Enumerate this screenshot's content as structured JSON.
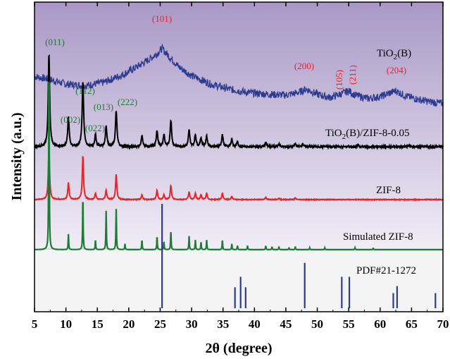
{
  "chart_data": {
    "type": "line",
    "xlabel": "2θ (degree)",
    "ylabel": "Intensity (a.u.)",
    "xlim": [
      5,
      70
    ],
    "x_ticks": [
      "5",
      "10",
      "15",
      "20",
      "25",
      "30",
      "35",
      "40",
      "45",
      "50",
      "55",
      "60",
      "65",
      "70"
    ],
    "y_ticks_shown": false,
    "grid": false,
    "background_bands": [
      {
        "name": "upper",
        "color_top": "#a998c6",
        "color_bottom": "#f1edf6"
      },
      {
        "name": "lower",
        "color": "#f4f4f4"
      }
    ],
    "series": [
      {
        "name": "TiO2(B)",
        "color": "#2e3a8f",
        "description_points": {
          "x": [
            5,
            7,
            10,
            13,
            16,
            19,
            21,
            23,
            24.5,
            25.3,
            26.5,
            28,
            30,
            33,
            36,
            39,
            42,
            45,
            47,
            48.2,
            50,
            52,
            54,
            55,
            56,
            58,
            60,
            62.5,
            64,
            66,
            68,
            70
          ],
          "y": [
            0.83,
            0.8,
            0.74,
            0.72,
            0.76,
            0.85,
            0.93,
            1.02,
            1.1,
            1.16,
            1.06,
            0.94,
            0.84,
            0.74,
            0.68,
            0.64,
            0.62,
            0.61,
            0.64,
            0.68,
            0.62,
            0.58,
            0.63,
            0.66,
            0.61,
            0.57,
            0.59,
            0.66,
            0.6,
            0.56,
            0.53,
            0.51
          ]
        },
        "annotations": [
          {
            "x": 25.3,
            "text": "(101)"
          },
          {
            "x": 48.0,
            "text": "(200)"
          },
          {
            "x": 54.0,
            "text": "(105)"
          },
          {
            "x": 55.2,
            "text": "(211)"
          },
          {
            "x": 62.7,
            "text": "(204)"
          }
        ]
      },
      {
        "name": "TiO2(B)/ZIF-8-0.05",
        "color": "#000000",
        "peaks": [
          {
            "x": 7.3,
            "h": 0.62
          },
          {
            "x": 10.4,
            "h": 0.2
          },
          {
            "x": 12.7,
            "h": 0.44
          },
          {
            "x": 14.7,
            "h": 0.08
          },
          {
            "x": 16.4,
            "h": 0.14
          },
          {
            "x": 18.0,
            "h": 0.24
          },
          {
            "x": 22.1,
            "h": 0.07
          },
          {
            "x": 24.5,
            "h": 0.11
          },
          {
            "x": 25.6,
            "h": 0.08
          },
          {
            "x": 26.7,
            "h": 0.18
          },
          {
            "x": 29.6,
            "h": 0.11
          },
          {
            "x": 30.6,
            "h": 0.08
          },
          {
            "x": 31.5,
            "h": 0.06
          },
          {
            "x": 32.4,
            "h": 0.07
          },
          {
            "x": 34.9,
            "h": 0.08
          },
          {
            "x": 36.4,
            "h": 0.05
          },
          {
            "x": 37.3,
            "h": 0.03
          },
          {
            "x": 41.8,
            "h": 0.03
          },
          {
            "x": 43.9,
            "h": 0.02
          },
          {
            "x": 46.5,
            "h": 0.02
          },
          {
            "x": 47.7,
            "h": 0.02
          },
          {
            "x": 56.5,
            "h": 0.01
          },
          {
            "x": 64.5,
            "h": 0.01
          }
        ],
        "annotations": [
          {
            "x": 7.3,
            "text": "(011)"
          },
          {
            "x": 12.7,
            "text": "(112)"
          },
          {
            "x": 10.4,
            "text": "(002)"
          },
          {
            "x": 14.7,
            "text": "(022)"
          },
          {
            "x": 16.4,
            "text": "(013)"
          },
          {
            "x": 18.0,
            "text": "(222)"
          }
        ]
      },
      {
        "name": "ZIF-8",
        "color": "#e8232a",
        "peaks": [
          {
            "x": 7.3,
            "h": 0.34
          },
          {
            "x": 10.4,
            "h": 0.11
          },
          {
            "x": 12.7,
            "h": 0.28
          },
          {
            "x": 14.7,
            "h": 0.04
          },
          {
            "x": 16.4,
            "h": 0.06
          },
          {
            "x": 18.0,
            "h": 0.16
          },
          {
            "x": 22.1,
            "h": 0.03
          },
          {
            "x": 24.5,
            "h": 0.06
          },
          {
            "x": 25.6,
            "h": 0.03
          },
          {
            "x": 26.7,
            "h": 0.09
          },
          {
            "x": 29.6,
            "h": 0.05
          },
          {
            "x": 30.6,
            "h": 0.04
          },
          {
            "x": 31.5,
            "h": 0.03
          },
          {
            "x": 32.4,
            "h": 0.04
          },
          {
            "x": 34.9,
            "h": 0.04
          },
          {
            "x": 36.4,
            "h": 0.02
          },
          {
            "x": 41.8,
            "h": 0.015
          },
          {
            "x": 43.9,
            "h": 0.01
          },
          {
            "x": 46.5,
            "h": 0.01
          }
        ]
      },
      {
        "name": "Simulated ZIF-8",
        "color": "#1e7a36",
        "peaks": [
          {
            "x": 7.3,
            "h": 1.0
          },
          {
            "x": 10.4,
            "h": 0.08
          },
          {
            "x": 12.7,
            "h": 0.28
          },
          {
            "x": 14.7,
            "h": 0.05
          },
          {
            "x": 16.4,
            "h": 0.2
          },
          {
            "x": 18.0,
            "h": 0.21
          },
          {
            "x": 19.4,
            "h": 0.03
          },
          {
            "x": 22.1,
            "h": 0.05
          },
          {
            "x": 24.5,
            "h": 0.07
          },
          {
            "x": 25.6,
            "h": 0.04
          },
          {
            "x": 26.7,
            "h": 0.1
          },
          {
            "x": 29.6,
            "h": 0.07
          },
          {
            "x": 30.6,
            "h": 0.05
          },
          {
            "x": 31.5,
            "h": 0.04
          },
          {
            "x": 32.4,
            "h": 0.05
          },
          {
            "x": 34.9,
            "h": 0.05
          },
          {
            "x": 36.4,
            "h": 0.03
          },
          {
            "x": 37.3,
            "h": 0.02
          },
          {
            "x": 38.9,
            "h": 0.02
          },
          {
            "x": 41.8,
            "h": 0.02
          },
          {
            "x": 42.8,
            "h": 0.015
          },
          {
            "x": 43.9,
            "h": 0.015
          },
          {
            "x": 45.5,
            "h": 0.01
          },
          {
            "x": 46.5,
            "h": 0.015
          },
          {
            "x": 48.8,
            "h": 0.01
          },
          {
            "x": 51.2,
            "h": 0.01
          },
          {
            "x": 56.0,
            "h": 0.01
          },
          {
            "x": 58.9,
            "h": 0.008
          }
        ]
      },
      {
        "name": "PDF#21-1272",
        "color": "#2e3a8f",
        "sticks": [
          {
            "x": 25.3,
            "h": 1.0
          },
          {
            "x": 36.9,
            "h": 0.18
          },
          {
            "x": 37.8,
            "h": 0.27
          },
          {
            "x": 38.6,
            "h": 0.18
          },
          {
            "x": 48.0,
            "h": 0.39
          },
          {
            "x": 53.9,
            "h": 0.27
          },
          {
            "x": 55.1,
            "h": 0.27
          },
          {
            "x": 62.1,
            "h": 0.13
          },
          {
            "x": 62.7,
            "h": 0.19
          },
          {
            "x": 68.8,
            "h": 0.13
          }
        ]
      }
    ],
    "series_labels": [
      {
        "text": "TiO",
        "sub": "2",
        "tail": "(B)"
      },
      {
        "text": "TiO",
        "sub": "2",
        "tail": "(B)/ZIF-8-0.05"
      },
      {
        "text": "ZIF-8"
      },
      {
        "text": "Simulated ZIF-8"
      },
      {
        "text": "PDF#21-1272"
      }
    ],
    "annotation_colors": {
      "red": "#e8232a",
      "green": "#1e7a36"
    }
  }
}
